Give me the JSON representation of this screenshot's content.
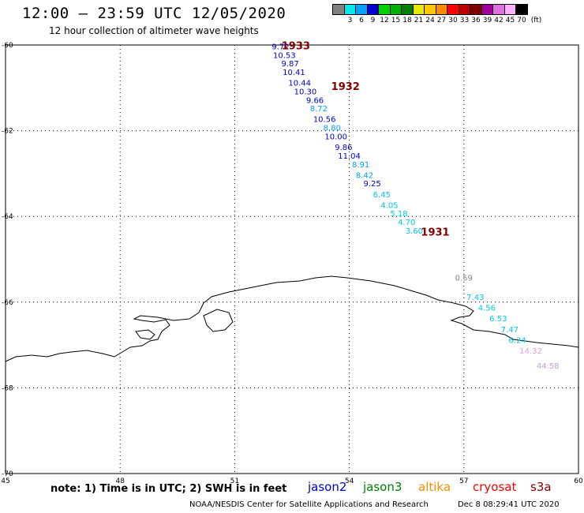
{
  "title": "12:00 – 23:59 UTC 12/05/2020",
  "subtitle": "12 hour collection of altimeter wave heights",
  "legend": {
    "unit": "(ft)",
    "colors": [
      "#808080",
      "#00e8e8",
      "#00a0ff",
      "#0000d0",
      "#00d000",
      "#00b000",
      "#008000",
      "#e8e800",
      "#ffc800",
      "#ff8c00",
      "#ff0000",
      "#c00000",
      "#800000",
      "#a000a0",
      "#e070e0",
      "#ffb0ff",
      "#000000"
    ],
    "labels": [
      "3",
      "6",
      "9",
      "12",
      "15",
      "18",
      "21",
      "24",
      "27",
      "30",
      "33",
      "36",
      "39",
      "42",
      "45",
      "70"
    ]
  },
  "map": {
    "lon_range": [
      45,
      60
    ],
    "lat_range": [
      -70,
      -60
    ],
    "lon_ticks": [
      "45",
      "48",
      "51",
      "54",
      "57",
      "60"
    ],
    "lat_ticks": [
      "-60",
      "-62",
      "-64",
      "-66",
      "-68",
      "-70"
    ],
    "observations": [
      {
        "lon": 52.2,
        "lat": -60.1,
        "text": "9.72",
        "color": "#0000d0"
      },
      {
        "lon": 52.3,
        "lat": -60.3,
        "text": "10.53",
        "color": "#0000d0"
      },
      {
        "lon": 52.45,
        "lat": -60.5,
        "text": "9.87",
        "color": "#0000d0"
      },
      {
        "lon": 52.55,
        "lat": -60.7,
        "text": "10.41",
        "color": "#0000d0"
      },
      {
        "lon": 52.7,
        "lat": -60.95,
        "text": "10.44",
        "color": "#0000d0"
      },
      {
        "lon": 52.85,
        "lat": -61.15,
        "text": "10.30",
        "color": "#0000d0"
      },
      {
        "lon": 53.1,
        "lat": -61.35,
        "text": "9.66",
        "color": "#0000d0"
      },
      {
        "lon": 53.2,
        "lat": -61.55,
        "text": "8.72",
        "color": "#00a0ff"
      },
      {
        "lon": 53.35,
        "lat": -61.8,
        "text": "10.56",
        "color": "#0000d0"
      },
      {
        "lon": 53.55,
        "lat": -62.0,
        "text": "8.80",
        "color": "#00a0ff"
      },
      {
        "lon": 53.65,
        "lat": -62.2,
        "text": "10.00",
        "color": "#0000d0"
      },
      {
        "lon": 53.85,
        "lat": -62.45,
        "text": "9.86",
        "color": "#0000d0"
      },
      {
        "lon": 54.0,
        "lat": -62.65,
        "text": "11.04",
        "color": "#0000d0"
      },
      {
        "lon": 54.3,
        "lat": -62.85,
        "text": "8.91",
        "color": "#00a0ff"
      },
      {
        "lon": 54.4,
        "lat": -63.1,
        "text": "8.42",
        "color": "#00a0ff"
      },
      {
        "lon": 54.6,
        "lat": -63.3,
        "text": "9.25",
        "color": "#0000d0"
      },
      {
        "lon": 54.85,
        "lat": -63.55,
        "text": "6.45",
        "color": "#00c8e8"
      },
      {
        "lon": 55.05,
        "lat": -63.8,
        "text": "4.05",
        "color": "#00c8e8"
      },
      {
        "lon": 55.3,
        "lat": -64.0,
        "text": "5.18",
        "color": "#00c8e8"
      },
      {
        "lon": 55.5,
        "lat": -64.2,
        "text": "4.70",
        "color": "#00c8e8"
      },
      {
        "lon": 55.7,
        "lat": -64.4,
        "text": "3.60",
        "color": "#00c8e8"
      },
      {
        "lon": 57.0,
        "lat": -65.5,
        "text": "0.59",
        "color": "#808080"
      },
      {
        "lon": 57.3,
        "lat": -65.95,
        "text": "7.43",
        "color": "#00c8e8"
      },
      {
        "lon": 57.6,
        "lat": -66.2,
        "text": "4.56",
        "color": "#00c8e8"
      },
      {
        "lon": 57.9,
        "lat": -66.45,
        "text": "6.53",
        "color": "#00c8e8"
      },
      {
        "lon": 58.2,
        "lat": -66.7,
        "text": "7.47",
        "color": "#00c8e8"
      },
      {
        "lon": 58.4,
        "lat": -66.95,
        "text": "6.24",
        "color": "#00c8e8"
      },
      {
        "lon": 58.75,
        "lat": -67.2,
        "text": "14.32",
        "color": "#e0a0e0"
      },
      {
        "lon": 59.2,
        "lat": -67.55,
        "text": "44.58",
        "color": "#c0a0e0"
      }
    ],
    "passes": [
      {
        "lon": 52.6,
        "lat": -60.1,
        "text": "1933",
        "color": "#800000"
      },
      {
        "lon": 53.9,
        "lat": -61.05,
        "text": "1932",
        "color": "#800000"
      },
      {
        "lon": 56.25,
        "lat": -64.45,
        "text": "1931",
        "color": "#800000"
      }
    ]
  },
  "note": "note: 1) Time is in UTC; 2) SWH is in feet",
  "satellites": [
    {
      "name": "jason2",
      "color": "#0000d0"
    },
    {
      "name": "jason3",
      "color": "#008000"
    },
    {
      "name": "altika",
      "color": "#ff8c00"
    },
    {
      "name": "cryosat",
      "color": "#ff0000"
    },
    {
      "name": "s3a",
      "color": "#800000"
    }
  ],
  "footer": "NOAA/NESDIS Center for Satellite Applications and Research",
  "footer_time": "Dec  8 08:29:41 UTC 2020"
}
